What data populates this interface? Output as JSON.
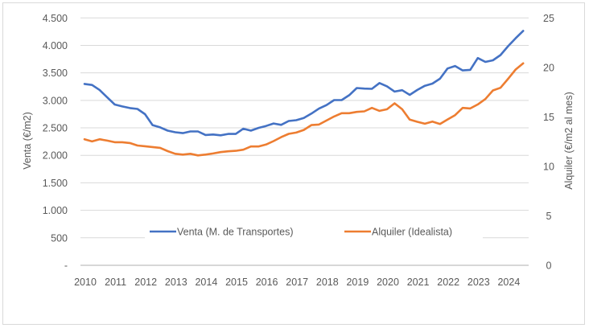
{
  "chart_data": {
    "type": "line",
    "title": "",
    "xlabel": "",
    "ylabel": "Venta (€/m2)",
    "ylabel_right": "Alquiler (€/m2 al mes)",
    "x_ticks": [
      "2010",
      "2011",
      "2012",
      "2013",
      "2014",
      "2015",
      "2016",
      "2017",
      "2018",
      "2019",
      "2020",
      "2021",
      "2022",
      "2023",
      "2024"
    ],
    "x_frequency": "quarterly",
    "x_start": "2010-Q1",
    "ylim": [
      0,
      4500
    ],
    "yticks": [
      "-",
      "500",
      "1.000",
      "1.500",
      "2.000",
      "2.500",
      "3.000",
      "3.500",
      "4.000",
      "4.500"
    ],
    "ylim_right": [
      0,
      25
    ],
    "yticks_right": [
      "0",
      "5",
      "10",
      "15",
      "20",
      "25"
    ],
    "grid": "horizontal",
    "legend": "bottom-inside",
    "series": [
      {
        "name": "Venta (M. de Transportes)",
        "axis": "left",
        "color": "#4472C4",
        "values": [
          3300,
          3280,
          3190,
          3055,
          2925,
          2890,
          2860,
          2845,
          2750,
          2550,
          2510,
          2450,
          2420,
          2405,
          2435,
          2435,
          2370,
          2380,
          2365,
          2390,
          2390,
          2485,
          2450,
          2500,
          2535,
          2580,
          2555,
          2625,
          2640,
          2680,
          2760,
          2850,
          2915,
          3005,
          3005,
          3095,
          3225,
          3215,
          3210,
          3315,
          3255,
          3160,
          3185,
          3100,
          3190,
          3265,
          3305,
          3395,
          3580,
          3625,
          3545,
          3555,
          3770,
          3700,
          3730,
          3825,
          3985,
          4130,
          4265
        ]
      },
      {
        "name": "Alquiler (Idealista)",
        "axis": "right",
        "color": "#ED7D31",
        "values": [
          12.74,
          12.52,
          12.74,
          12.6,
          12.44,
          12.44,
          12.36,
          12.11,
          12.03,
          11.95,
          11.87,
          11.54,
          11.27,
          11.19,
          11.27,
          11.11,
          11.19,
          11.3,
          11.44,
          11.52,
          11.57,
          11.68,
          12.01,
          12.01,
          12.2,
          12.55,
          12.95,
          13.28,
          13.41,
          13.68,
          14.17,
          14.23,
          14.63,
          15.04,
          15.37,
          15.37,
          15.5,
          15.56,
          15.91,
          15.61,
          15.77,
          16.37,
          15.77,
          14.72,
          14.5,
          14.31,
          14.53,
          14.28,
          14.74,
          15.18,
          15.91,
          15.85,
          16.26,
          16.8,
          17.67,
          17.94,
          18.84,
          19.78,
          20.41
        ]
      }
    ]
  }
}
